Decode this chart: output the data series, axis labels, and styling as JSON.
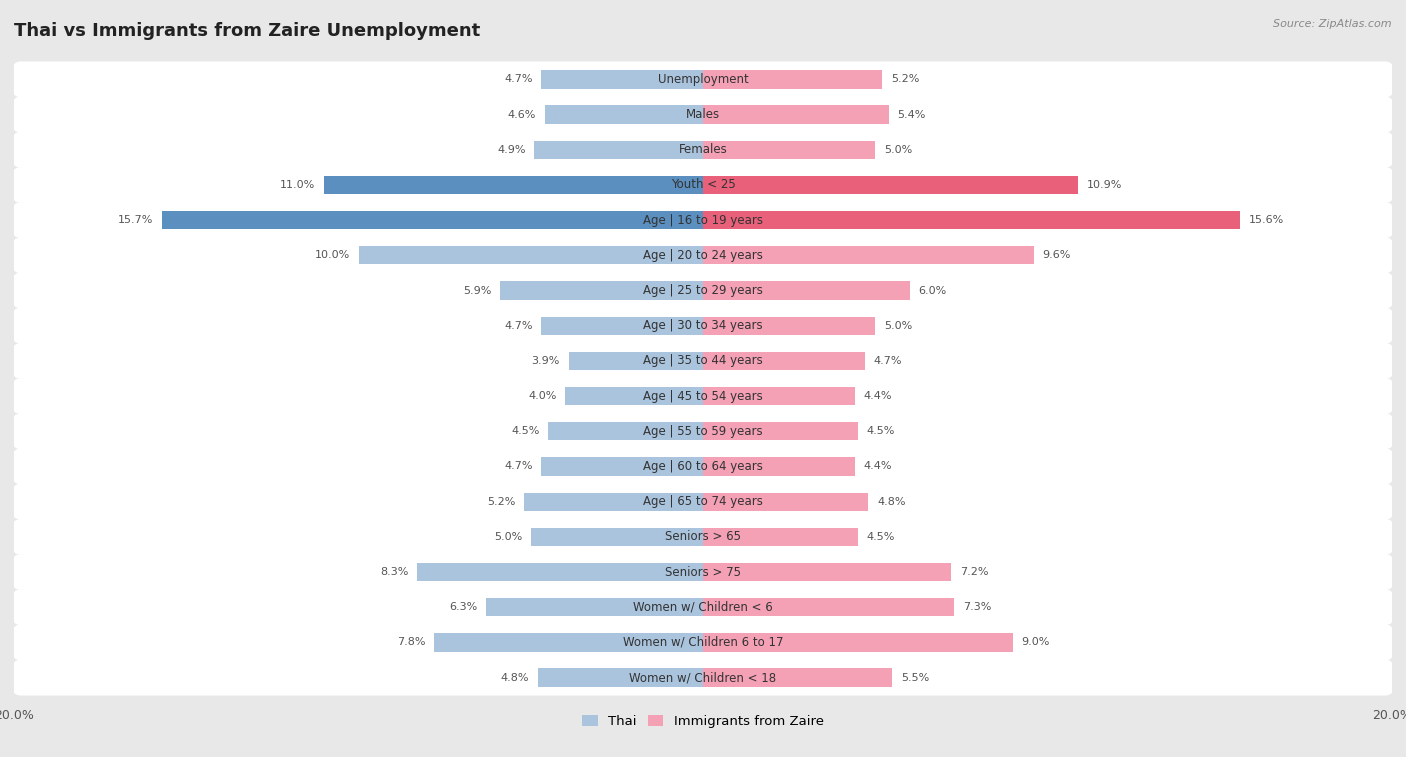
{
  "title": "Thai vs Immigrants from Zaire Unemployment",
  "source": "Source: ZipAtlas.com",
  "categories": [
    "Unemployment",
    "Males",
    "Females",
    "Youth < 25",
    "Age | 16 to 19 years",
    "Age | 20 to 24 years",
    "Age | 25 to 29 years",
    "Age | 30 to 34 years",
    "Age | 35 to 44 years",
    "Age | 45 to 54 years",
    "Age | 55 to 59 years",
    "Age | 60 to 64 years",
    "Age | 65 to 74 years",
    "Seniors > 65",
    "Seniors > 75",
    "Women w/ Children < 6",
    "Women w/ Children 6 to 17",
    "Women w/ Children < 18"
  ],
  "thai_values": [
    4.7,
    4.6,
    4.9,
    11.0,
    15.7,
    10.0,
    5.9,
    4.7,
    3.9,
    4.0,
    4.5,
    4.7,
    5.2,
    5.0,
    8.3,
    6.3,
    7.8,
    4.8
  ],
  "zaire_values": [
    5.2,
    5.4,
    5.0,
    10.9,
    15.6,
    9.6,
    6.0,
    5.0,
    4.7,
    4.4,
    4.5,
    4.4,
    4.8,
    4.5,
    7.2,
    7.3,
    9.0,
    5.5
  ],
  "thai_color": "#aac4de",
  "zaire_color": "#f4a0b5",
  "thai_highlight": "#5b8fbf",
  "zaire_highlight": "#e8607a",
  "thai_label": "Thai",
  "zaire_label": "Immigrants from Zaire",
  "axis_max": 20.0,
  "background_color": "#e8e8e8",
  "row_bg_color": "#ffffff",
  "row_bg_alt": "#f0f0f0",
  "title_fontsize": 13,
  "label_fontsize": 8.5,
  "value_fontsize": 8,
  "highlight_rows": [
    3,
    4
  ]
}
